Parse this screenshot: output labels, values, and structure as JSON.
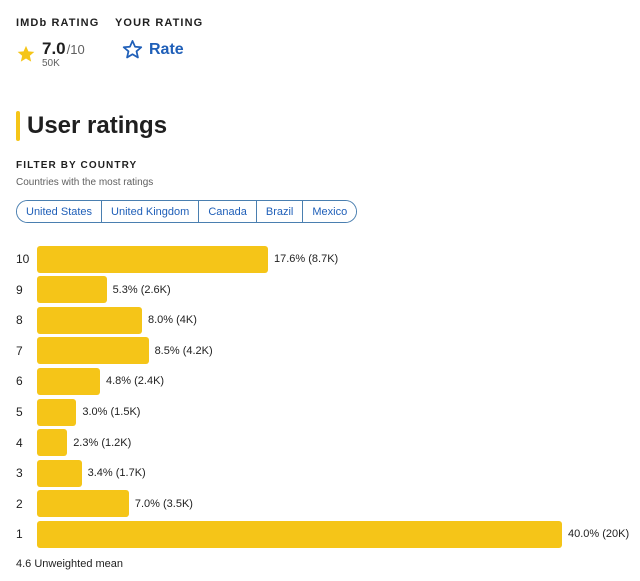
{
  "imdb_rating": {
    "label": "IMDb RATING",
    "score": "7.0",
    "max": "/10",
    "votes": "50K",
    "icon": "star-filled-icon"
  },
  "your_rating": {
    "label": "YOUR RATING",
    "action": "Rate",
    "icon": "star-outline-icon"
  },
  "section": {
    "title": "User ratings"
  },
  "filter": {
    "heading": "FILTER BY COUNTRY",
    "subtitle": "Countries with the most ratings",
    "countries": [
      "United States",
      "United Kingdom",
      "Canada",
      "Brazil",
      "Mexico"
    ]
  },
  "chart_data": {
    "type": "bar",
    "orientation": "horizontal",
    "categories": [
      "10",
      "9",
      "8",
      "7",
      "6",
      "5",
      "4",
      "3",
      "2",
      "1"
    ],
    "values": [
      17.6,
      5.3,
      8.0,
      8.5,
      4.8,
      3.0,
      2.3,
      3.4,
      7.0,
      40.0
    ],
    "value_labels": [
      "17.6% (8.7K)",
      "5.3% (2.6K)",
      "8.0% (4K)",
      "8.5% (4.2K)",
      "4.8% (2.4K)",
      "3.0% (1.5K)",
      "2.3% (1.2K)",
      "3.4% (1.7K)",
      "7.0% (3.5K)",
      "40.0% (20K)"
    ],
    "xlim": [
      0,
      40
    ],
    "grid": false,
    "color": "#f5c518"
  },
  "mean_text": "4.6 Unweighted mean",
  "colors": {
    "accent": "#f5c518",
    "link": "#1f5fb8"
  }
}
